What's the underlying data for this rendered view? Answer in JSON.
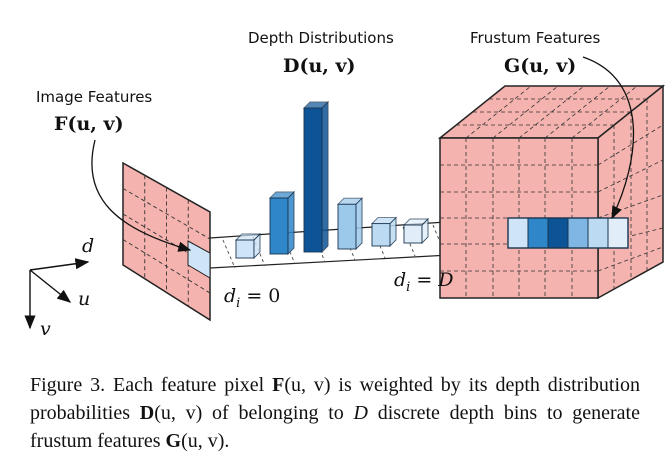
{
  "labels": {
    "image_features": "Image Features",
    "image_features_math": "F(u, v)",
    "depth_distributions": "Depth Distributions",
    "depth_distributions_math": "D(u, v)",
    "frustum_features": "Frustum Features",
    "frustum_features_math": "G(u, v)",
    "axis_d": "d",
    "axis_u": "u",
    "axis_v": "v",
    "di_zero": "d",
    "di_zero_sub": "i",
    "di_zero_rhs": "= 0",
    "di_D": "d",
    "di_D_sub": "i",
    "di_D_rhs": "= D"
  },
  "bars": [
    {
      "prob": 0.08,
      "color": "#cfe4f6"
    },
    {
      "prob": 0.35,
      "color": "#2f86c8"
    },
    {
      "prob": 0.9,
      "color": "#0d5496"
    },
    {
      "prob": 0.28,
      "color": "#9cc8ea"
    },
    {
      "prob": 0.14,
      "color": "#bcdaf2"
    },
    {
      "prob": 0.05,
      "color": "#e1eefa"
    }
  ],
  "frustum_cell_colors": [
    "#cfe4f6",
    "#2f86c8",
    "#0d5496",
    "#7fb6e3",
    "#bcdaf2",
    "#e1eefa"
  ],
  "colors": {
    "feature_fill": "#f4b3ae",
    "feature_grid": "#2a2a2a",
    "ink": "#111111"
  },
  "caption": {
    "lead": "Figure 3. Each feature pixel ",
    "F": "F",
    "F_args": "(u, v)",
    "p2": " is weighted by its depth distribution probabilities ",
    "D": "D",
    "D_args": "(u, v)",
    "p3": " of belonging to ",
    "D_var": "D",
    "p4": " discrete depth bins to generate frustum features ",
    "G": "G",
    "G_args": "(u, v)",
    "end": "."
  }
}
